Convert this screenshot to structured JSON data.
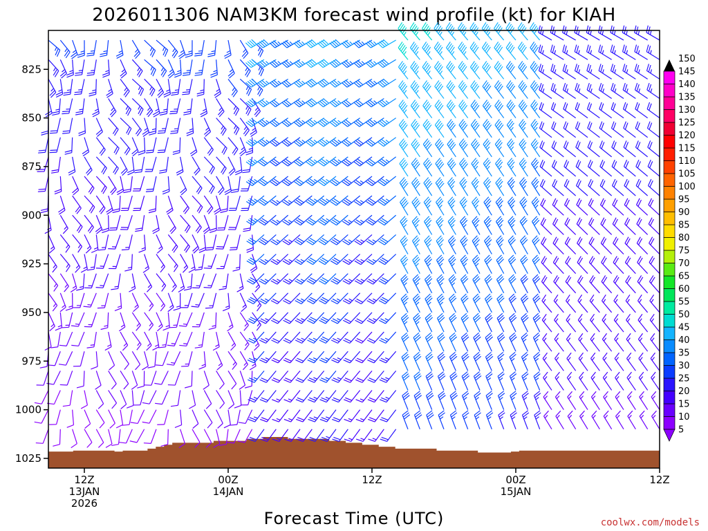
{
  "chart_data": {
    "type": "wind-profile",
    "title": "2026011306 NAM3KM forecast wind profile (kt) for KIAH",
    "xlabel": "Forecast Time (UTC)",
    "ylabel": "",
    "credit": "coolwx.com/models",
    "y_axis": {
      "unit": "hPa",
      "range": [
        805,
        1030
      ],
      "ticks": [
        "825",
        "850",
        "875",
        "900",
        "925",
        "950",
        "975",
        "1000",
        "1025"
      ]
    },
    "x_axis": {
      "unit": "forecast hour",
      "range": [
        3,
        54
      ],
      "ticks": [
        {
          "hour": 6,
          "lines": [
            "12Z",
            "13JAN",
            "2026"
          ]
        },
        {
          "hour": 18,
          "lines": [
            "00Z",
            "14JAN"
          ]
        },
        {
          "hour": 30,
          "lines": [
            "12Z"
          ]
        },
        {
          "hour": 42,
          "lines": [
            "00Z",
            "15JAN"
          ]
        },
        {
          "hour": 54,
          "lines": [
            "12Z"
          ]
        }
      ]
    },
    "colorbar": {
      "levels": [
        "5",
        "10",
        "15",
        "20",
        "25",
        "30",
        "35",
        "40",
        "45",
        "50",
        "55",
        "60",
        "65",
        "70",
        "75",
        "80",
        "85",
        "90",
        "95",
        "100",
        "105",
        "110",
        "115",
        "120",
        "125",
        "130",
        "135",
        "140",
        "145",
        "150"
      ],
      "colors": [
        "#8c00ff",
        "#6a00ff",
        "#4400ff",
        "#2a14ff",
        "#0a3cff",
        "#0064ff",
        "#0a8cff",
        "#14b4ff",
        "#00dcd2",
        "#00eba0",
        "#00e65a",
        "#14e628",
        "#5aeb14",
        "#b4f00a",
        "#f0f000",
        "#ffdc00",
        "#ffbe00",
        "#ffa000",
        "#ff8200",
        "#ff6400",
        "#ff4100",
        "#ff1e00",
        "#ff0000",
        "#f00032",
        "#ff0064",
        "#ff0096",
        "#ff00c8",
        "#ff00f0",
        "#e600ff",
        "#000000"
      ]
    },
    "terrain": {
      "color": "#a0522d",
      "surface_pressure_hPa": [
        1021.5,
        1021.5,
        1021.5,
        1021.5,
        1021.5,
        1021.5,
        1021,
        1021,
        1021,
        1021,
        1021,
        1021,
        1021,
        1021,
        1021,
        1021,
        1021.5,
        1021.5,
        1021,
        1021,
        1021,
        1021,
        1021,
        1021,
        1020,
        1020,
        1019,
        1019,
        1018,
        1018,
        1017,
        1017,
        1017,
        1017,
        1017,
        1017,
        1017,
        1017,
        1017,
        1017,
        1016,
        1016,
        1016,
        1016,
        1016,
        1016,
        1016,
        1016,
        1015,
        1015,
        1015,
        1015,
        1014,
        1014,
        1014,
        1014,
        1014,
        1014,
        1015,
        1015,
        1015,
        1015,
        1015,
        1015,
        1015,
        1015,
        1015,
        1015,
        1016,
        1016,
        1016,
        1016,
        1017,
        1017,
        1017,
        1017,
        1018,
        1018,
        1018,
        1018,
        1019,
        1019,
        1019,
        1019,
        1020,
        1020,
        1020,
        1020,
        1020,
        1020,
        1020,
        1020,
        1020,
        1020,
        1021,
        1021,
        1021,
        1021,
        1021,
        1021,
        1021,
        1021,
        1021,
        1021,
        1022,
        1022,
        1022,
        1022,
        1022,
        1022,
        1022,
        1022,
        1021.5,
        1021.5,
        1021,
        1021,
        1021,
        1021,
        1021,
        1021,
        1021,
        1021,
        1021,
        1021,
        1021,
        1021,
        1021,
        1021,
        1021,
        1021,
        1021,
        1021,
        1021,
        1021,
        1021,
        1021,
        1021,
        1021,
        1021,
        1021,
        1021,
        1021,
        1021,
        1021,
        1021,
        1021,
        1021,
        1021
      ]
    },
    "wind": {
      "description": "Wind barbs at every forecast hour and level; direction in degrees (from), speed in knots.",
      "hours_start": 3,
      "hours_end": 54,
      "pressure_levels": [
        810,
        820,
        830,
        840,
        850,
        860,
        870,
        880,
        890,
        900,
        910,
        920,
        930,
        940,
        950,
        960,
        970,
        980,
        990,
        1000,
        1010,
        1020
      ]
    }
  }
}
